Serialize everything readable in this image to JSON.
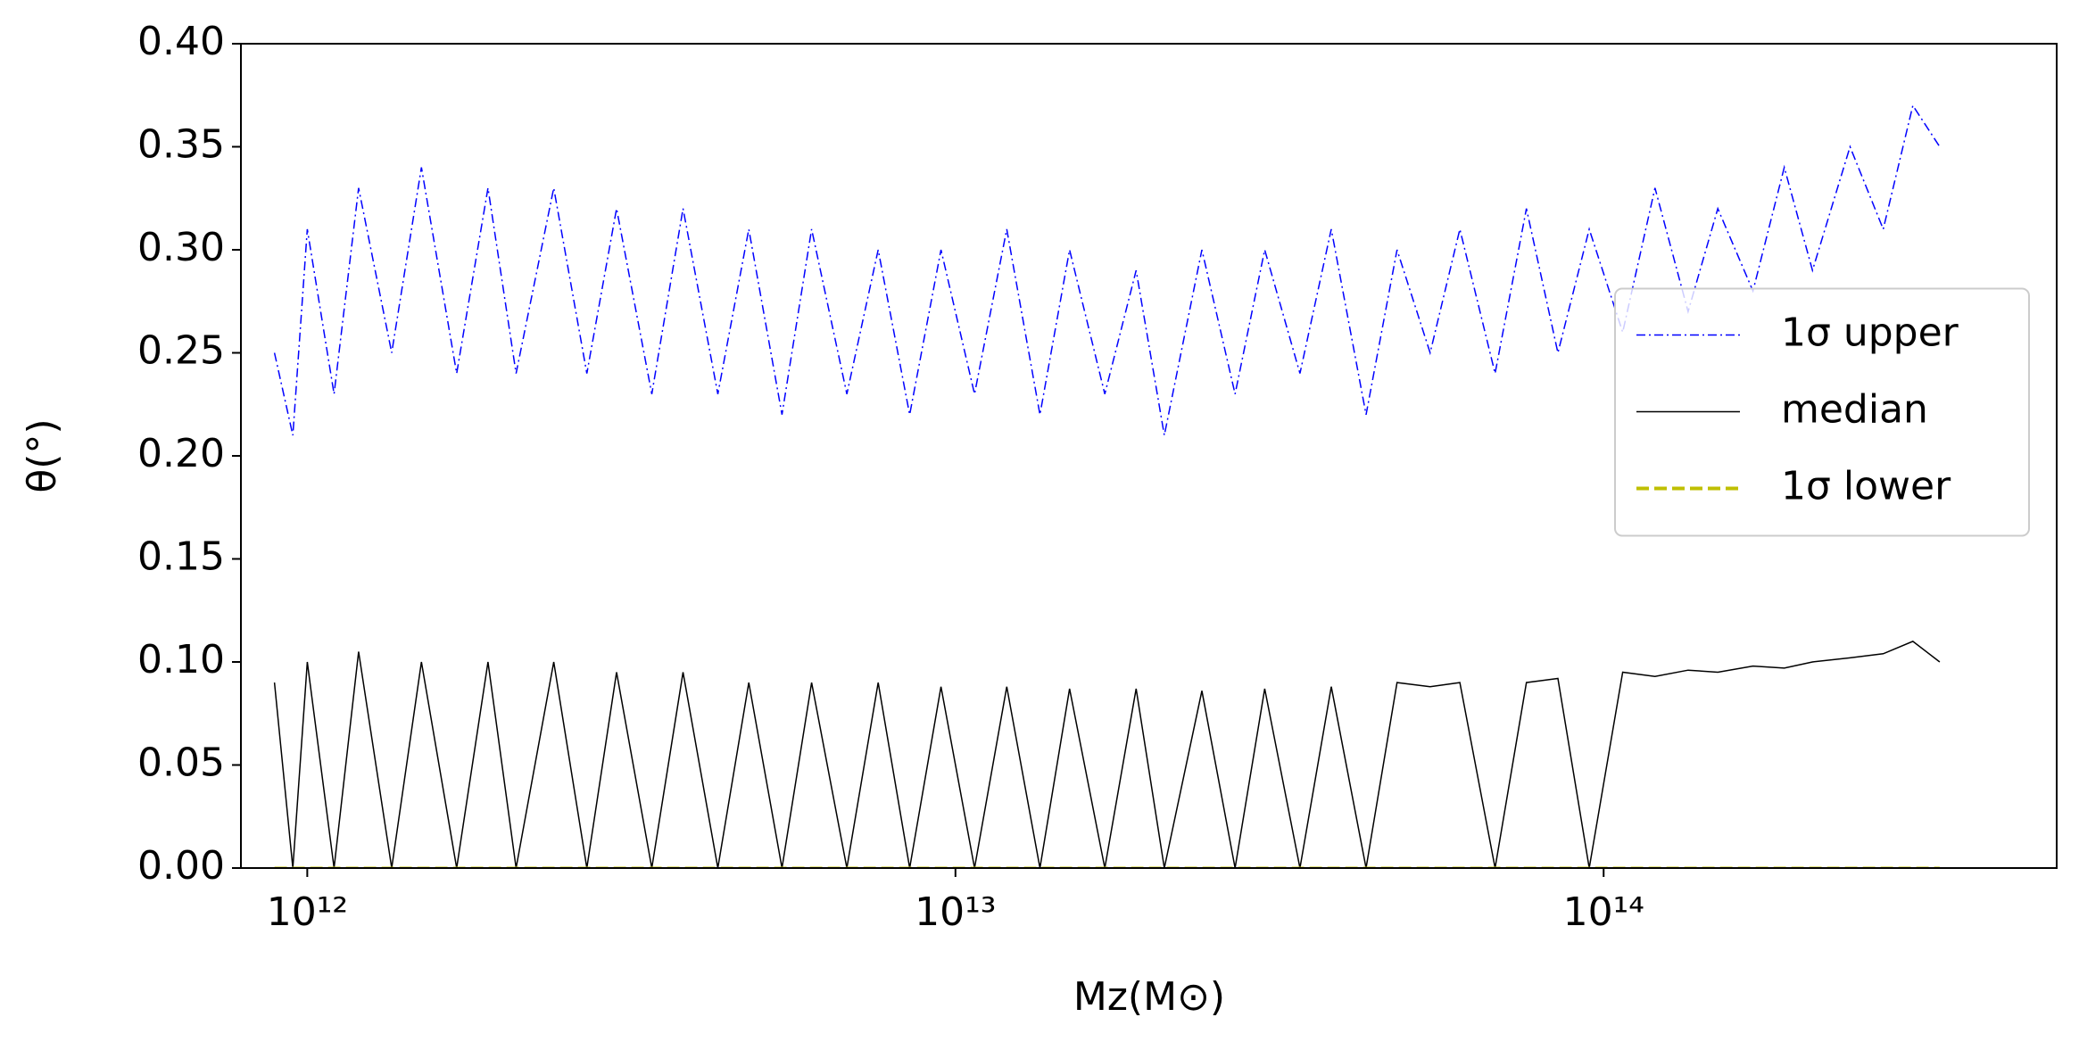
{
  "chart_data": {
    "type": "line",
    "xlabel": "Mz(M⊙)",
    "ylabel": "θ(°)",
    "x": [
      890000000000.0,
      950000000000.0,
      1000000000000.0,
      1100000000000.0,
      1200000000000.0,
      1350000000000.0,
      1500000000000.0,
      1700000000000.0,
      1900000000000.0,
      2100000000000.0,
      2400000000000.0,
      2700000000000.0,
      3000000000000.0,
      3400000000000.0,
      3800000000000.0,
      4300000000000.0,
      4800000000000.0,
      5400000000000.0,
      6000000000000.0,
      6800000000000.0,
      7600000000000.0,
      8500000000000.0,
      9500000000000.0,
      10700000000000.0,
      12000000000000.0,
      13500000000000.0,
      15000000000000.0,
      17000000000000.0,
      19000000000000.0,
      21000000000000.0,
      24000000000000.0,
      27000000000000.0,
      30000000000000.0,
      34000000000000.0,
      38000000000000.0,
      43000000000000.0,
      48000000000000.0,
      54000000000000.0,
      60000000000000.0,
      68000000000000.0,
      76000000000000.0,
      85000000000000.0,
      95000000000000.0,
      107000000000000.0,
      120000000000000.0,
      135000000000000.0,
      150000000000000.0,
      170000000000000.0,
      190000000000000.0,
      210000000000000.0,
      240000000000000.0,
      270000000000000.0,
      300000000000000.0,
      330000000000000.0
    ],
    "series": [
      {
        "name": "1σ upper",
        "color": "#0000ff",
        "dash": "dashdot",
        "values": [
          0.25,
          0.21,
          0.31,
          0.23,
          0.33,
          0.25,
          0.34,
          0.24,
          0.33,
          0.24,
          0.33,
          0.24,
          0.32,
          0.23,
          0.32,
          0.23,
          0.31,
          0.22,
          0.31,
          0.23,
          0.3,
          0.22,
          0.3,
          0.23,
          0.31,
          0.22,
          0.3,
          0.23,
          0.29,
          0.21,
          0.3,
          0.23,
          0.3,
          0.24,
          0.31,
          0.22,
          0.3,
          0.25,
          0.31,
          0.24,
          0.32,
          0.25,
          0.31,
          0.26,
          0.33,
          0.27,
          0.32,
          0.28,
          0.34,
          0.29,
          0.35,
          0.31,
          0.37,
          0.35
        ]
      },
      {
        "name": "median",
        "color": "#000000",
        "dash": "solid",
        "values": [
          0.09,
          0,
          0.1,
          0,
          0.105,
          0,
          0.1,
          0,
          0.1,
          0,
          0.1,
          0,
          0.095,
          0,
          0.095,
          0,
          0.09,
          0,
          0.09,
          0,
          0.09,
          0,
          0.088,
          0,
          0.088,
          0,
          0.087,
          0,
          0.087,
          0,
          0.086,
          0,
          0.087,
          0,
          0.088,
          0,
          0.09,
          0.088,
          0.09,
          0,
          0.09,
          0.092,
          0,
          0.095,
          0.093,
          0.096,
          0.095,
          0.098,
          0.097,
          0.1,
          0.102,
          0.104,
          0.11,
          0.1
        ]
      },
      {
        "name": "1σ lower",
        "color": "#bfbf00",
        "dash": "dashed",
        "values": [
          0,
          0,
          0,
          0,
          0,
          0,
          0,
          0,
          0,
          0,
          0,
          0,
          0,
          0,
          0,
          0,
          0,
          0,
          0,
          0,
          0,
          0,
          0,
          0,
          0,
          0,
          0,
          0,
          0,
          0,
          0,
          0,
          0,
          0,
          0,
          0,
          0,
          0,
          0,
          0,
          0,
          0,
          0,
          0,
          0,
          0,
          0,
          0,
          0,
          0,
          0,
          0,
          0,
          0
        ]
      }
    ],
    "xscale": "log",
    "xlim": [
      790000000000.0,
      500000000000000.0
    ],
    "xticks": [
      {
        "value": 1000000000000.0,
        "label": "10¹²"
      },
      {
        "value": 10000000000000.0,
        "label": "10¹³"
      },
      {
        "value": 100000000000000.0,
        "label": "10¹⁴"
      }
    ],
    "ylim": [
      0,
      0.4
    ],
    "yticks": [
      {
        "value": 0,
        "label": "0.00"
      },
      0.05,
      {
        "value": 0.1,
        "label": "0.10"
      },
      0.15,
      {
        "value": 0.2,
        "label": "0.20"
      },
      0.25,
      {
        "value": 0.3,
        "label": "0.30"
      },
      0.35,
      {
        "value": 0.4,
        "label": "0.40"
      }
    ],
    "legend": "center right",
    "grid": false
  }
}
